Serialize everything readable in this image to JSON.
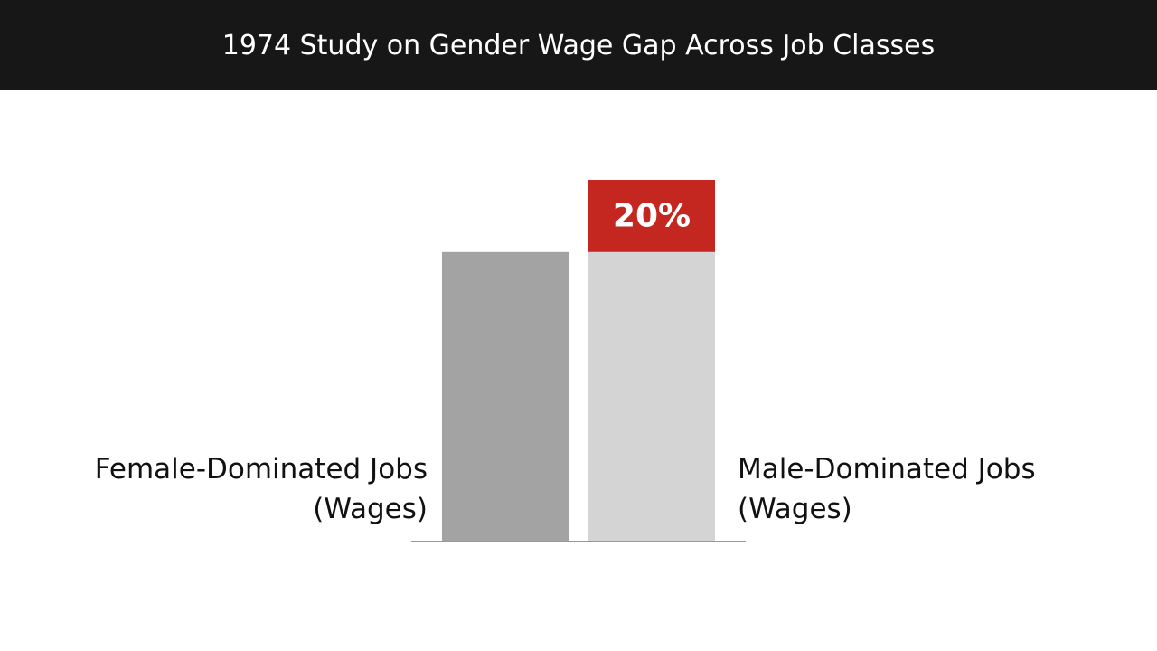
{
  "chart_data": {
    "type": "stacked-bar",
    "title": "1974 Study on Gender Wage Gap Across Job Classes",
    "categories": [
      "Female-Dominated Jobs\n(Wages)",
      "Male-Dominated Jobs\n(Wages)"
    ],
    "series": [
      {
        "colors": [
          "#a3a3a3",
          "#d4d4d4"
        ],
        "values": [
          80,
          80
        ]
      },
      {
        "color": "#c4271f",
        "values": [
          null,
          20
        ],
        "value_labels": [
          null,
          "20%"
        ]
      }
    ]
  }
}
